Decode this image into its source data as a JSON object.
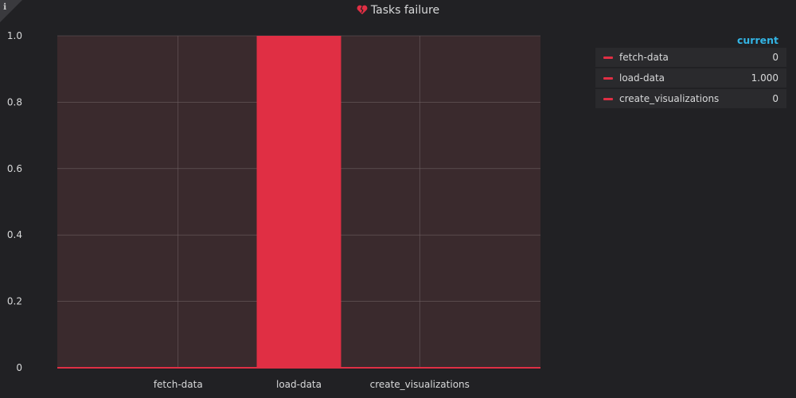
{
  "panel": {
    "title": "Tasks failure",
    "info_icon": "info-icon",
    "title_icon": "broken-heart-icon"
  },
  "chart_data": {
    "type": "bar",
    "title": "Tasks failure",
    "categories": [
      "fetch-data",
      "load-data",
      "create_visualizations"
    ],
    "values": [
      0,
      1.0,
      0
    ],
    "ylim": [
      0,
      1.0
    ],
    "yticks": [
      "0",
      "0.2",
      "0.4",
      "0.6",
      "0.8",
      "1.0"
    ],
    "grid": true,
    "legend_placement": "right",
    "colors": {
      "bar": "#e02f44",
      "plot_bg": "#3a2a2d",
      "grid": "#6b5e60"
    }
  },
  "legend": {
    "header": "current",
    "rows": [
      {
        "label": "fetch-data",
        "value": "0"
      },
      {
        "label": "load-data",
        "value": "1.000"
      },
      {
        "label": "create_visualizations",
        "value": "0"
      }
    ]
  }
}
